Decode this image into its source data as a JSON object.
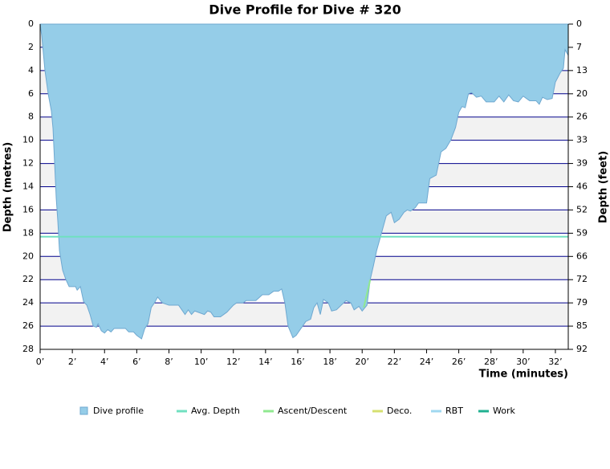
{
  "chart_data": {
    "type": "area",
    "title": "Dive Profile for Dive # 320",
    "x_label": "Time (minutes)",
    "y_label": "Depth (metres)",
    "y2_label": "Depth (feet)",
    "xlim": [
      0,
      32.8
    ],
    "xticks": [
      {
        "value": 0,
        "label": "0’"
      },
      {
        "value": 2,
        "label": "2’"
      },
      {
        "value": 4,
        "label": "4’"
      },
      {
        "value": 6,
        "label": "6’"
      },
      {
        "value": 8,
        "label": "8’"
      },
      {
        "value": 10,
        "label": "10’"
      },
      {
        "value": 12,
        "label": "12’"
      },
      {
        "value": 14,
        "label": "14’"
      },
      {
        "value": 16,
        "label": "16’"
      },
      {
        "value": 18,
        "label": "18’"
      },
      {
        "value": 20,
        "label": "20’"
      },
      {
        "value": 22,
        "label": "22’"
      },
      {
        "value": 24,
        "label": "24’"
      },
      {
        "value": 26,
        "label": "26’"
      },
      {
        "value": 28,
        "label": "28’"
      },
      {
        "value": 30,
        "label": "30’"
      },
      {
        "value": 32,
        "label": "32’"
      }
    ],
    "ylim": [
      0,
      28
    ],
    "y_reversed": true,
    "yticks": [
      0,
      2,
      4,
      6,
      8,
      10,
      12,
      14,
      16,
      18,
      20,
      22,
      24,
      26,
      28
    ],
    "y2lim": [
      0,
      91.86
    ],
    "y2ticks": [
      {
        "value": 0,
        "label": "0"
      },
      {
        "value": 6.56,
        "label": "7"
      },
      {
        "value": 13.12,
        "label": "13"
      },
      {
        "value": 19.69,
        "label": "20"
      },
      {
        "value": 26.25,
        "label": "26"
      },
      {
        "value": 32.81,
        "label": "33"
      },
      {
        "value": 39.37,
        "label": "39"
      },
      {
        "value": 45.93,
        "label": "46"
      },
      {
        "value": 52.49,
        "label": "52"
      },
      {
        "value": 59.06,
        "label": "59"
      },
      {
        "value": 65.62,
        "label": "66"
      },
      {
        "value": 72.18,
        "label": "72"
      },
      {
        "value": 78.74,
        "label": "79"
      },
      {
        "value": 85.3,
        "label": "85"
      },
      {
        "value": 91.86,
        "label": "92"
      }
    ],
    "grid": true,
    "series": [
      {
        "name": "Dive profile",
        "color": "#95cde8",
        "kind": "area",
        "x": [
          0,
          0.1,
          0.3,
          0.5,
          0.7,
          0.8,
          0.9,
          1.0,
          1.1,
          1.2,
          1.4,
          1.6,
          1.8,
          2.2,
          2.3,
          2.5,
          2.7,
          2.9,
          3.1,
          3.3,
          3.5,
          3.6,
          3.8,
          4.0,
          4.2,
          4.4,
          4.6,
          5.3,
          5.5,
          5.8,
          6.0,
          6.3,
          6.5,
          6.7,
          6.9,
          7.1,
          7.3,
          7.6,
          8.0,
          8.6,
          8.8,
          9.0,
          9.2,
          9.4,
          9.6,
          10.2,
          10.4,
          10.6,
          10.8,
          11.2,
          11.6,
          12.0,
          12.2,
          12.6,
          12.8,
          13.4,
          13.8,
          14.2,
          14.5,
          14.8,
          15.0,
          15.2,
          15.4,
          15.7,
          15.9,
          16.2,
          16.5,
          16.8,
          17.0,
          17.2,
          17.4,
          17.6,
          17.9,
          18.1,
          18.4,
          18.7,
          19.0,
          19.3,
          19.5,
          19.8,
          20.0,
          20.3,
          20.5,
          20.7,
          20.9,
          21.1,
          21.3,
          21.5,
          21.8,
          22.0,
          22.3,
          22.6,
          22.8,
          23.0,
          23.3,
          23.5,
          24.0,
          24.2,
          24.6,
          24.9,
          25.2,
          25.5,
          25.8,
          26.0,
          26.2,
          26.4,
          26.6,
          26.8,
          27.1,
          27.4,
          27.7,
          28.2,
          28.5,
          28.8,
          29.1,
          29.4,
          29.7,
          30.0,
          30.4,
          30.8,
          31.0,
          31.2,
          31.5,
          31.8,
          32.0,
          32.3,
          32.5,
          32.6,
          32.8
        ],
        "values": [
          0,
          1,
          4,
          6,
          7.5,
          9,
          12,
          15,
          17,
          19.5,
          21.2,
          22,
          22.6,
          22.6,
          22.9,
          22.6,
          23.9,
          24.2,
          25,
          26,
          26.1,
          25.8,
          26.4,
          26.6,
          26.3,
          26.5,
          26.2,
          26.2,
          26.5,
          26.5,
          26.8,
          27.1,
          26.2,
          25.8,
          24.4,
          24,
          23.5,
          24,
          24.2,
          24.2,
          24.6,
          25,
          24.6,
          25,
          24.7,
          25,
          24.7,
          24.8,
          25.2,
          25.2,
          24.8,
          24.2,
          24,
          24,
          23.8,
          23.8,
          23.3,
          23.3,
          23,
          23,
          22.8,
          24,
          26,
          27,
          26.8,
          26.2,
          25.6,
          25.4,
          24.4,
          24,
          25,
          23.7,
          24,
          24.7,
          24.6,
          24.2,
          23.8,
          24,
          24.6,
          24.3,
          24.7,
          24.2,
          22,
          20.8,
          19.5,
          18.5,
          17.5,
          16.5,
          16.2,
          17.1,
          16.8,
          16.2,
          16,
          16.1,
          15.8,
          15.4,
          15.4,
          13.3,
          13,
          11,
          10.7,
          10,
          8.9,
          7.6,
          7.1,
          7.2,
          6,
          5.9,
          6.3,
          6.2,
          6.7,
          6.7,
          6.2,
          6.7,
          6.1,
          6.6,
          6.7,
          6.2,
          6.6,
          6.6,
          6.9,
          6.3,
          6.5,
          6.4,
          5,
          4.2,
          3.8,
          2.2,
          2.7
        ]
      },
      {
        "name": "Avg. Depth",
        "color": "#70e0c0",
        "kind": "line",
        "x": [
          0,
          32.8
        ],
        "values": [
          18.3,
          18.3
        ]
      },
      {
        "name": "Ascent/Descent",
        "color": "#90e890",
        "kind": "line",
        "x": [
          20.1,
          20.5
        ],
        "values": [
          24.4,
          22.0
        ]
      },
      {
        "name": "Deco.",
        "color": "#d6e070",
        "kind": "line",
        "x": [],
        "values": []
      },
      {
        "name": "RBT",
        "color": "#a0d8f0",
        "kind": "line",
        "x": [],
        "values": []
      },
      {
        "name": "Work",
        "color": "#20b090",
        "kind": "line",
        "x": [],
        "values": []
      }
    ]
  }
}
